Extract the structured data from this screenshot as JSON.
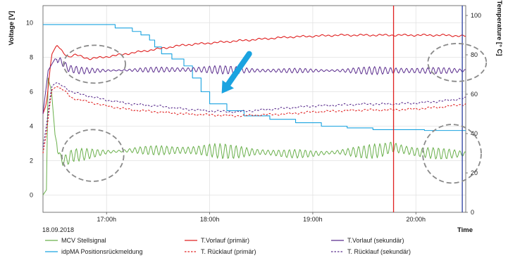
{
  "chart_data": {
    "type": "line",
    "date_label": "18.09.2018",
    "xlabel": "Time",
    "ylabel_left": "Voltage [V]",
    "ylabel_right": "Temperature [° C]",
    "x_range": [
      "16:23",
      "20:29"
    ],
    "ylim_left": [
      -1,
      11
    ],
    "ylim_right": [
      0,
      105
    ],
    "yticks_left": [
      "0",
      "2",
      "4",
      "6",
      "8",
      "10"
    ],
    "yticks_right": [
      "0",
      "20",
      "40",
      "60",
      "80",
      "100"
    ],
    "xticks": [
      {
        "time": "17:00",
        "label": "17:00h"
      },
      {
        "time": "18:00",
        "label": "18:00h"
      },
      {
        "time": "19:00",
        "label": "19:00h"
      },
      {
        "time": "20:00",
        "label": "20:00h"
      }
    ],
    "vertical_markers": [
      {
        "time": "19:47",
        "color": "#e02020"
      },
      {
        "time": "20:27",
        "color": "#2b3fa0"
      }
    ],
    "series": [
      {
        "name": "MCV Stellsignal",
        "axis": "left",
        "color": "#6ab04c",
        "dash": "solid",
        "oscillation": 0.45,
        "points": [
          [
            "16:23",
            0
          ],
          [
            "16:25",
            0.3
          ],
          [
            "16:26",
            6.8
          ],
          [
            "16:28",
            6.0
          ],
          [
            "16:30",
            3.5
          ],
          [
            "16:33",
            2.1
          ],
          [
            "16:36",
            2.0
          ],
          [
            "16:40",
            2.3
          ],
          [
            "16:50",
            2.4
          ],
          [
            "17:00",
            2.5
          ],
          [
            "17:15",
            2.6
          ],
          [
            "17:30",
            2.6
          ],
          [
            "17:45",
            2.6
          ],
          [
            "18:00",
            2.6
          ],
          [
            "18:15",
            2.5
          ],
          [
            "18:30",
            2.5
          ],
          [
            "18:45",
            2.4
          ],
          [
            "19:00",
            2.4
          ],
          [
            "19:15",
            2.5
          ],
          [
            "19:30",
            2.5
          ],
          [
            "19:40",
            2.6
          ],
          [
            "19:46",
            2.8
          ],
          [
            "19:50",
            2.7
          ],
          [
            "20:00",
            2.5
          ],
          [
            "20:15",
            2.4
          ],
          [
            "20:29",
            2.4
          ]
        ]
      },
      {
        "name": "idpMA Positionsrückmeldung",
        "axis": "left",
        "color": "#1aa3e0",
        "dash": "solid",
        "stepped": true,
        "points": [
          [
            "16:23",
            9.9
          ],
          [
            "16:55",
            9.9
          ],
          [
            "17:05",
            9.7
          ],
          [
            "17:15",
            9.5
          ],
          [
            "17:20",
            9.3
          ],
          [
            "17:25",
            9.0
          ],
          [
            "17:28",
            8.6
          ],
          [
            "17:32",
            8.2
          ],
          [
            "17:38",
            7.9
          ],
          [
            "17:45",
            7.5
          ],
          [
            "17:50",
            6.8
          ],
          [
            "17:55",
            6.0
          ],
          [
            "18:00",
            5.3
          ],
          [
            "18:10",
            4.9
          ],
          [
            "18:20",
            4.6
          ],
          [
            "18:35",
            4.4
          ],
          [
            "18:50",
            4.2
          ],
          [
            "19:05",
            4.0
          ],
          [
            "19:20",
            3.9
          ],
          [
            "19:35",
            3.8
          ],
          [
            "19:50",
            3.8
          ],
          [
            "20:05",
            3.75
          ],
          [
            "20:29",
            3.75
          ]
        ]
      },
      {
        "name": "T.Vorlauf (primär)",
        "axis": "right",
        "color": "#e02020",
        "dash": "solid",
        "points": [
          [
            "16:23",
            50
          ],
          [
            "16:25",
            55
          ],
          [
            "16:28",
            80
          ],
          [
            "16:31",
            85
          ],
          [
            "16:35",
            81
          ],
          [
            "16:38",
            79
          ],
          [
            "16:42",
            80
          ],
          [
            "16:50",
            78
          ],
          [
            "17:00",
            79
          ],
          [
            "17:15",
            81
          ],
          [
            "17:30",
            83
          ],
          [
            "17:45",
            85
          ],
          [
            "18:00",
            86
          ],
          [
            "18:15",
            87
          ],
          [
            "18:30",
            88
          ],
          [
            "18:45",
            89
          ],
          [
            "19:00",
            89.5
          ],
          [
            "19:15",
            90
          ],
          [
            "19:30",
            90
          ],
          [
            "19:45",
            90
          ],
          [
            "20:00",
            90
          ],
          [
            "20:15",
            90
          ],
          [
            "20:29",
            89.5
          ]
        ]
      },
      {
        "name": "T.Vorlauf (sekundär)",
        "axis": "right",
        "color": "#5b2d8e",
        "dash": "solid",
        "oscillation": 2.2,
        "points": [
          [
            "16:23",
            50
          ],
          [
            "16:26",
            72
          ],
          [
            "16:30",
            78
          ],
          [
            "16:33",
            77
          ],
          [
            "16:38",
            73
          ],
          [
            "16:45",
            72
          ],
          [
            "17:00",
            72
          ],
          [
            "17:30",
            72.5
          ],
          [
            "18:00",
            72.5
          ],
          [
            "18:30",
            72
          ],
          [
            "19:00",
            72
          ],
          [
            "19:30",
            72
          ],
          [
            "20:00",
            72
          ],
          [
            "20:29",
            72
          ]
        ]
      },
      {
        "name": "T. Rücklauf (primär)",
        "axis": "right",
        "color": "#e02020",
        "dash": "dashed",
        "points": [
          [
            "16:23",
            30
          ],
          [
            "16:25",
            40
          ],
          [
            "16:28",
            62
          ],
          [
            "16:31",
            64
          ],
          [
            "16:35",
            62
          ],
          [
            "16:40",
            58
          ],
          [
            "17:00",
            54
          ],
          [
            "17:15",
            52
          ],
          [
            "17:30",
            51
          ],
          [
            "17:45",
            50
          ],
          [
            "18:00",
            49.5
          ],
          [
            "18:15",
            49
          ],
          [
            "18:30",
            49.5
          ],
          [
            "18:45",
            50
          ],
          [
            "19:00",
            51
          ],
          [
            "19:15",
            51.5
          ],
          [
            "19:30",
            52
          ],
          [
            "19:45",
            52
          ],
          [
            "20:00",
            52.5
          ],
          [
            "20:15",
            53.5
          ],
          [
            "20:29",
            55
          ]
        ]
      },
      {
        "name": "T. Rücklauf (sekundär)",
        "axis": "right",
        "color": "#5b2d8e",
        "dash": "dashed",
        "points": [
          [
            "16:23",
            33
          ],
          [
            "16:25",
            44
          ],
          [
            "16:28",
            64
          ],
          [
            "16:31",
            66
          ],
          [
            "16:35",
            64
          ],
          [
            "16:40",
            61
          ],
          [
            "17:00",
            57
          ],
          [
            "17:15",
            55
          ],
          [
            "17:30",
            54
          ],
          [
            "17:45",
            52.5
          ],
          [
            "18:00",
            51.5
          ],
          [
            "18:15",
            51
          ],
          [
            "18:30",
            52
          ],
          [
            "18:45",
            53
          ],
          [
            "19:00",
            54
          ],
          [
            "19:15",
            54.5
          ],
          [
            "19:30",
            55
          ],
          [
            "19:45",
            55
          ],
          [
            "20:00",
            55.5
          ],
          [
            "20:15",
            56.5
          ],
          [
            "20:29",
            58
          ]
        ]
      }
    ],
    "annotations": [
      {
        "type": "ellipse",
        "cx": "16:53",
        "cy_left": 7.6,
        "rx_min": 18,
        "ry_v": 1.1
      },
      {
        "type": "ellipse",
        "cx": "16:52",
        "cy_left": 2.3,
        "rx_min": 18,
        "ry_v": 1.5
      },
      {
        "type": "ellipse",
        "cx": "20:24",
        "cy_left": 7.7,
        "rx_min": 17,
        "ry_v": 1.1
      },
      {
        "type": "ellipse",
        "cx": "20:21",
        "cy_left": 2.4,
        "rx_min": 17,
        "ry_v": 1.7
      },
      {
        "type": "arrow",
        "color": "#1aa3e0",
        "from_time": "18:23",
        "from_left": 8.2,
        "to_time": "18:07",
        "to_left": 5.9
      }
    ]
  }
}
